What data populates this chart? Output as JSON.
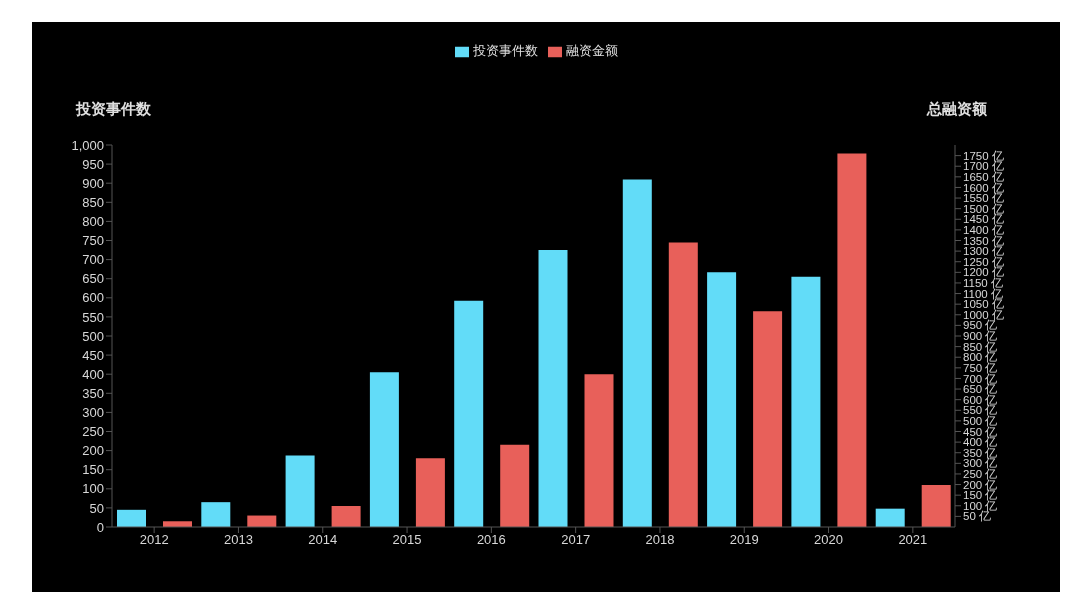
{
  "chart_data": {
    "type": "bar",
    "categories": [
      "2012",
      "2013",
      "2014",
      "2015",
      "2016",
      "2017",
      "2018",
      "2019",
      "2020",
      "2021"
    ],
    "ylabel": "投资事件数",
    "y2label": "总融资额",
    "series": [
      {
        "name": "投资事件数",
        "color": "#62dcf8",
        "values": [
          45,
          65,
          187,
          405,
          592,
          725,
          910,
          667,
          655,
          48
        ]
      },
      {
        "name": "融资金额",
        "color": "#e8605a",
        "axis": "y2",
        "values": [
          27,
          54,
          99,
          324,
          387,
          720,
          1341,
          1017,
          1760,
          198
        ]
      }
    ],
    "ylim": [
      0,
      1000
    ],
    "yticks": [
      0,
      50,
      100,
      150,
      200,
      250,
      300,
      350,
      400,
      450,
      500,
      550,
      600,
      650,
      700,
      750,
      800,
      850,
      900,
      950,
      {
        "value": 1000,
        "label": "1,000"
      }
    ],
    "y2lim": [
      0,
      1800
    ],
    "y2ticks": [
      {
        "value": 50,
        "label": "50 亿"
      },
      {
        "value": 100,
        "label": "100 亿"
      },
      {
        "value": 150,
        "label": "150 亿"
      },
      {
        "value": 200,
        "label": "200 亿"
      },
      {
        "value": 250,
        "label": "250 亿"
      },
      {
        "value": 300,
        "label": "300 亿"
      },
      {
        "value": 350,
        "label": "350 亿"
      },
      {
        "value": 400,
        "label": "400 亿"
      },
      {
        "value": 450,
        "label": "450 亿"
      },
      {
        "value": 500,
        "label": "500 亿"
      },
      {
        "value": 550,
        "label": "550 亿"
      },
      {
        "value": 600,
        "label": "600 亿"
      },
      {
        "value": 650,
        "label": "650 亿"
      },
      {
        "value": 700,
        "label": "700 亿"
      },
      {
        "value": 750,
        "label": "750 亿"
      },
      {
        "value": 800,
        "label": "800 亿"
      },
      {
        "value": 850,
        "label": "850 亿"
      },
      {
        "value": 900,
        "label": "900 亿"
      },
      {
        "value": 950,
        "label": "950 亿"
      },
      {
        "value": 1000,
        "label": "1000 亿"
      },
      {
        "value": 1050,
        "label": "1050 亿"
      },
      {
        "value": 1100,
        "label": "1100 亿"
      },
      {
        "value": 1150,
        "label": "1150 亿"
      },
      {
        "value": 1200,
        "label": "1200 亿"
      },
      {
        "value": 1250,
        "label": "1250 亿"
      },
      {
        "value": 1300,
        "label": "1300 亿"
      },
      {
        "value": 1350,
        "label": "1350 亿"
      },
      {
        "value": 1400,
        "label": "1400 亿"
      },
      {
        "value": 1450,
        "label": "1450 亿"
      },
      {
        "value": 1500,
        "label": "1500 亿"
      },
      {
        "value": 1550,
        "label": "1550 亿"
      },
      {
        "value": 1600,
        "label": "1600 亿"
      },
      {
        "value": 1650,
        "label": "1650 亿"
      },
      {
        "value": 1700,
        "label": "1700 亿"
      },
      {
        "value": 1750,
        "label": "1750 亿"
      }
    ],
    "grid": false,
    "legend": "top"
  }
}
